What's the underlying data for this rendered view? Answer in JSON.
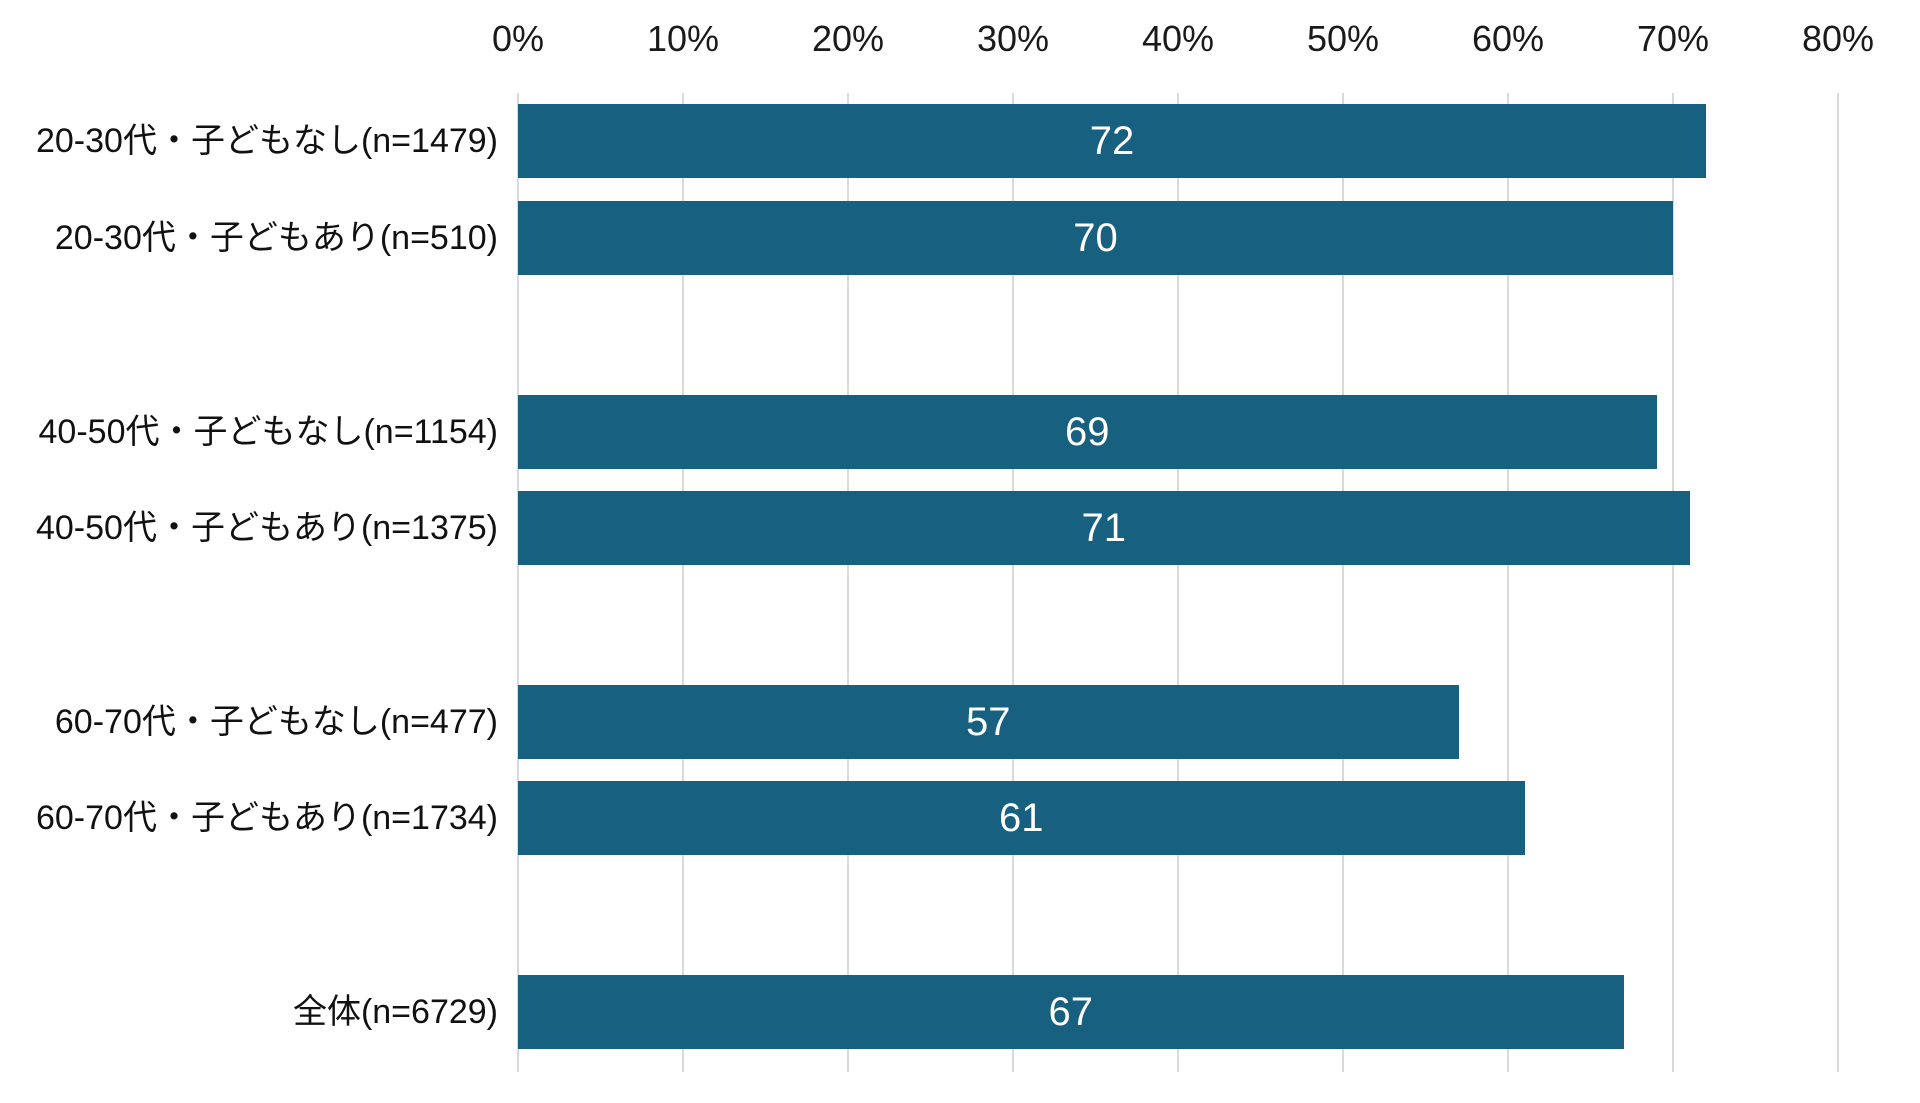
{
  "chart_data": {
    "type": "bar",
    "orientation": "horizontal",
    "title": "",
    "categories": [
      "20-30代・子どもなし(n=1479)",
      "20-30代・子どもあり(n=510)",
      "40-50代・子どもなし(n=1154)",
      "40-50代・子どもあり(n=1375)",
      "60-70代・子どもなし(n=477)",
      "60-70代・子どもあり(n=1734)",
      "全体(n=6729)"
    ],
    "values": [
      72,
      70,
      69,
      71,
      57,
      61,
      67
    ],
    "xlim": [
      0,
      80
    ],
    "xtick_step": 10,
    "xtick_labels": [
      "0%",
      "10%",
      "20%",
      "30%",
      "40%",
      "50%",
      "60%",
      "70%",
      "80%"
    ],
    "axis_position": "top",
    "grid": true,
    "legend": "none",
    "data_labels": {
      "position": "inside-center",
      "color": "#ffffff"
    },
    "group_slots": [
      0,
      1,
      3,
      4,
      6,
      7,
      9
    ],
    "slot_count": 10,
    "colors": {
      "bar": "#17607F",
      "gridline": "#d9d9d9",
      "axis_text": "#1a1a1a",
      "background": "#ffffff"
    }
  }
}
